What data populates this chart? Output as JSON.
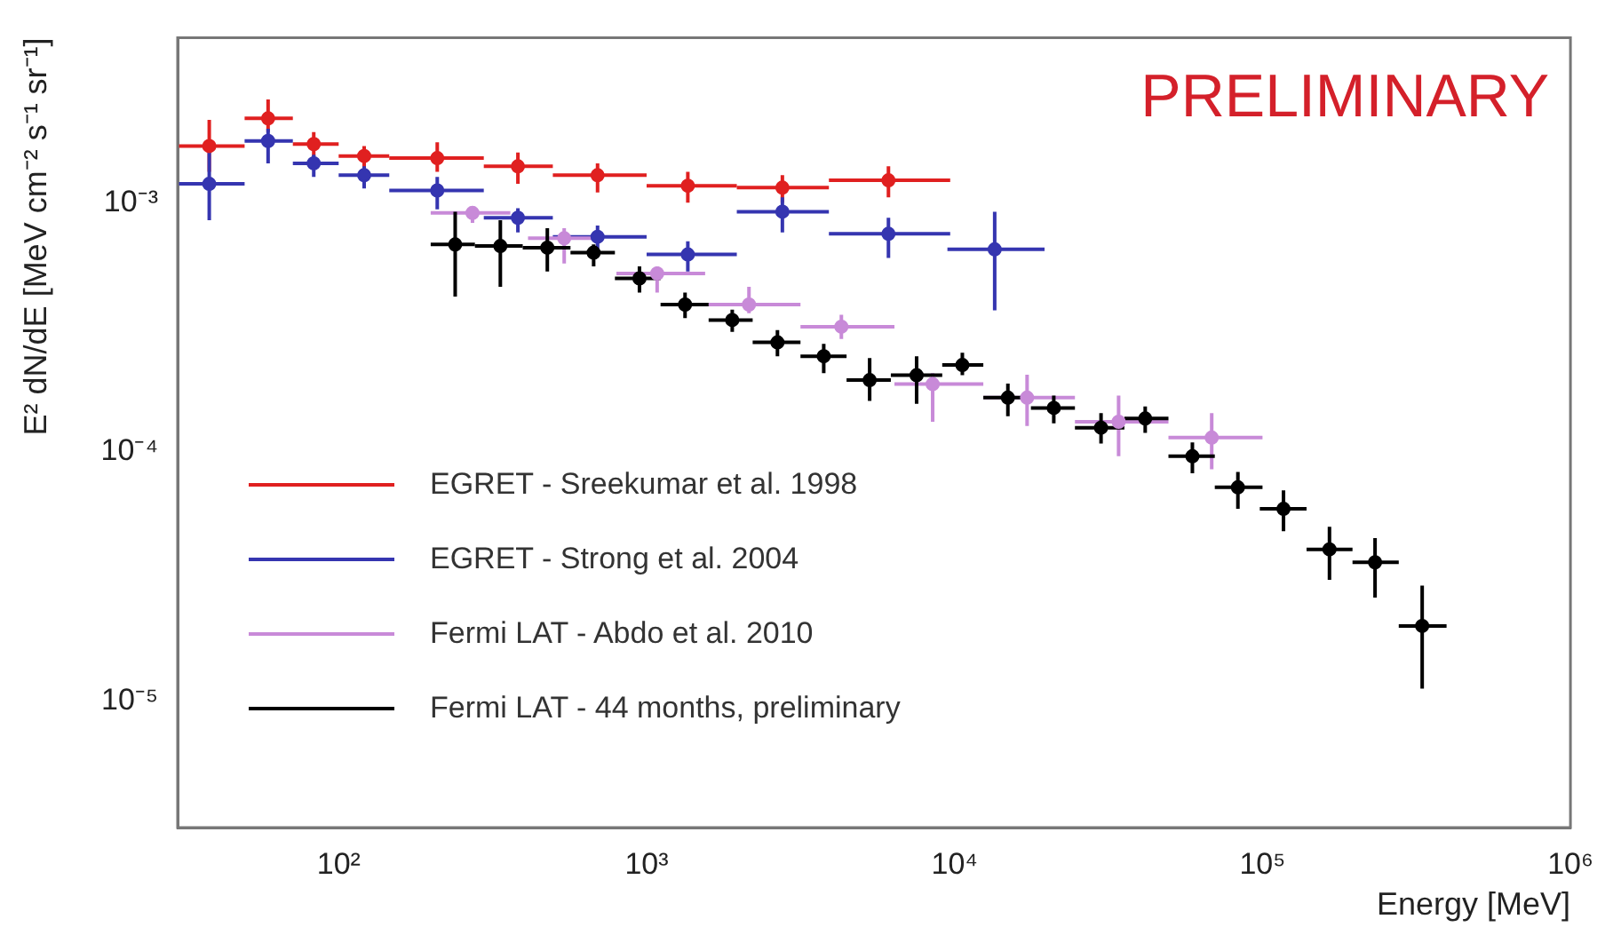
{
  "chart_data": {
    "type": "scatter",
    "xlabel": "Energy [MeV]",
    "ylabel": "E² dN/dE [MeV cm⁻² s⁻¹ sr⁻¹]",
    "xlim": [
      30,
      1000000
    ],
    "ylim": [
      3.1e-06,
      0.0046
    ],
    "xticks": [
      {
        "value": 100,
        "label": "10²"
      },
      {
        "value": 1000,
        "label": "10³"
      },
      {
        "value": 10000,
        "label": "10⁴"
      },
      {
        "value": 100000,
        "label": "10⁵"
      },
      {
        "value": 1000000,
        "label": "10⁶"
      }
    ],
    "yticks": [
      {
        "value": 1e-05,
        "label": "10⁻⁵"
      },
      {
        "value": 0.0001,
        "label": "10⁻⁴"
      },
      {
        "value": 0.001,
        "label": "10⁻³"
      }
    ],
    "log": "xy",
    "grid": false,
    "legend": "bottom left",
    "marker": "circle",
    "annotations": [
      "PRELIMINARY"
    ],
    "series": [
      {
        "name": "EGRET - Sreekumar et al. 1998",
        "color": "#e02020",
        "x": [
          38,
          59,
          83,
          121,
          209,
          382,
          693,
          1361,
          2760,
          6100
        ],
        "values": [
          0.00169,
          0.00218,
          0.00172,
          0.00154,
          0.00151,
          0.0014,
          0.00129,
          0.00117,
          0.00115,
          0.00123
        ],
        "errors": [
          [
            0.00133,
            0.00215
          ],
          [
            0.00192,
            0.0026
          ],
          [
            0.00151,
            0.00192
          ],
          [
            0.00138,
            0.00169
          ],
          [
            0.00133,
            0.00175
          ],
          [
            0.00119,
            0.00159
          ],
          [
            0.0011,
            0.00144
          ],
          [
            0.001,
            0.00133
          ],
          [
            0.001,
            0.00129
          ],
          [
            0.00105,
            0.0014
          ]
        ],
        "xerrors": [
          [
            30,
            49.5
          ],
          [
            49.5,
            71
          ],
          [
            71,
            100
          ],
          [
            100,
            146
          ],
          [
            146,
            296
          ],
          [
            296,
            496
          ],
          [
            496,
            1000
          ],
          [
            1000,
            1963
          ],
          [
            1963,
            3908
          ],
          [
            3908,
            9680
          ]
        ]
      },
      {
        "name": "EGRET - Strong et al. 2004",
        "color": "#3535b0",
        "x": [
          38,
          59,
          83,
          121,
          209,
          382,
          693,
          1361,
          2760,
          6100,
          13500
        ],
        "values": [
          0.00119,
          0.00177,
          0.00144,
          0.00129,
          0.00112,
          0.00087,
          0.00073,
          0.00062,
          0.00092,
          0.00075,
          0.00065
        ],
        "errors": [
          [
            0.00085,
            0.00164
          ],
          [
            0.00144,
            0.00198
          ],
          [
            0.00127,
            0.00156
          ],
          [
            0.00114,
            0.0014
          ],
          [
            0.00094,
            0.00127
          ],
          [
            0.00076,
            0.00095
          ],
          [
            0.00065,
            0.00081
          ],
          [
            0.00053,
            0.0007
          ],
          [
            0.00076,
            0.00105
          ],
          [
            0.0006,
            0.00087
          ],
          [
            0.00037,
            0.00092
          ]
        ],
        "xerrors": [
          [
            30,
            49.5
          ],
          [
            49.5,
            71
          ],
          [
            71,
            100
          ],
          [
            100,
            146
          ],
          [
            146,
            296
          ],
          [
            296,
            496
          ],
          [
            496,
            1000
          ],
          [
            1000,
            1963
          ],
          [
            1963,
            3908
          ],
          [
            3908,
            9680
          ],
          [
            9480,
            19600
          ]
        ]
      },
      {
        "name": "Fermi LAT - Abdo et al. 2010",
        "color": "#c88ad8",
        "x": [
          272,
          540,
          1082,
          2150,
          4290,
          8490,
          17200,
          34100,
          68400
        ],
        "values": [
          0.00091,
          0.00072,
          0.00052,
          0.00039,
          0.000318,
          0.000187,
          0.000165,
          0.000132,
          0.000114
        ],
        "errors": [
          [
            0.00083,
            0.00097
          ],
          [
            0.00057,
            0.00079
          ],
          [
            0.000436,
            0.000555
          ],
          [
            0.00036,
            0.00046
          ],
          [
            0.000284,
            0.000355
          ],
          [
            0.000132,
            0.000207
          ],
          [
            0.000127,
            0.000204
          ],
          [
            9.6e-05,
            0.000168
          ],
          [
            8.5e-05,
            0.000143
          ]
        ],
        "xerrors": [
          [
            199,
            361
          ],
          [
            412,
            700
          ],
          [
            798,
            1549
          ],
          [
            1590,
            3160
          ],
          [
            3160,
            6380
          ],
          [
            6380,
            12400
          ],
          [
            12400,
            24600
          ],
          [
            24600,
            49500
          ],
          [
            49500,
            100000
          ]
        ]
      },
      {
        "name": "Fermi LAT - 44 months, preliminary",
        "color": "#000000",
        "x": [
          239,
          335,
          476,
          673,
          948,
          1333,
          1897,
          2660,
          3760,
          5300,
          7530,
          10600,
          14900,
          21000,
          29900,
          41600,
          59200,
          83200,
          117000,
          165000,
          232000,
          330000
        ],
        "values": [
          0.00068,
          0.00067,
          0.00066,
          0.00063,
          0.000497,
          0.00039,
          0.000338,
          0.000275,
          0.000242,
          0.000194,
          0.000203,
          0.000223,
          0.000165,
          0.00015,
          0.000125,
          0.000136,
          9.6e-05,
          7.2e-05,
          5.9e-05,
          4.06e-05,
          3.6e-05,
          2e-05
        ],
        "errors": [
          [
            0.00042,
            0.00092
          ],
          [
            0.00046,
            0.00085
          ],
          [
            0.00053,
            0.00079
          ],
          [
            0.000555,
            0.00068
          ],
          [
            0.000436,
            0.000555
          ],
          [
            0.000344,
            0.000436
          ],
          [
            0.000303,
            0.000372
          ],
          [
            0.000242,
            0.000308
          ],
          [
            0.000207,
            0.000271
          ],
          [
            0.00016,
            0.000238
          ],
          [
            0.000156,
            0.000242
          ],
          [
            0.000203,
            0.00025
          ],
          [
            0.000139,
            0.000188
          ],
          [
            0.00013,
            0.000168
          ],
          [
            0.000108,
            0.000143
          ],
          [
            0.000119,
            0.000152
          ],
          [
            8.2e-05,
            0.000109
          ],
          [
            5.9e-05,
            8.3e-05
          ],
          [
            4.8e-05,
            7e-05
          ],
          [
            3.06e-05,
            5e-05
          ],
          [
            2.6e-05,
            4.5e-05
          ],
          [
            1.12e-05,
            2.9e-05
          ]
        ],
        "xerrors": [
          [
            199,
            277
          ],
          [
            277,
            396
          ],
          [
            396,
            566
          ],
          [
            566,
            789
          ],
          [
            789,
            1110
          ],
          [
            1110,
            1590
          ],
          [
            1590,
            2210
          ],
          [
            2210,
            3160
          ],
          [
            3160,
            4460
          ],
          [
            4460,
            6210
          ],
          [
            6210,
            9120
          ],
          [
            9120,
            12400
          ],
          [
            12400,
            17700
          ],
          [
            17700,
            24600
          ],
          [
            24600,
            35600
          ],
          [
            35600,
            49500
          ],
          [
            49500,
            70000
          ],
          [
            70000,
            100000
          ],
          [
            98000,
            139000
          ],
          [
            139000,
            196000
          ],
          [
            196000,
            277000
          ],
          [
            277000,
            396000
          ]
        ]
      }
    ]
  }
}
